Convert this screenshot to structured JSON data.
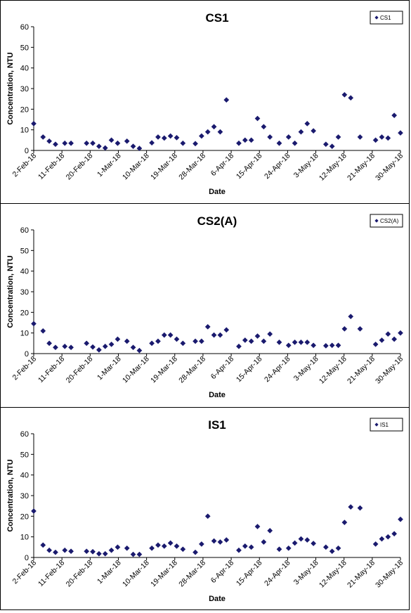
{
  "chart_data": [
    {
      "type": "scatter",
      "title": "CS1",
      "xlabel": "Date",
      "ylabel": "Concentration, NTU",
      "ylim": [
        0,
        60
      ],
      "yticks": [
        0,
        10,
        20,
        30,
        40,
        50,
        60
      ],
      "xlim": [
        "2018-02-02",
        "2018-05-31"
      ],
      "xtick_labels": [
        "2-Feb-18",
        "11-Feb-18",
        "20-Feb-18",
        "1-Mar-18",
        "10-Mar-18",
        "19-Mar-18",
        "28-Mar-18",
        "6-Apr-18",
        "15-Apr-18",
        "24-Apr-18",
        "3-May-18",
        "12-May-18",
        "21-May-18",
        "30-May-18"
      ],
      "legend": "top-right",
      "grid": false,
      "marker_color": "#1a1a6e",
      "series": [
        {
          "name": "CS1",
          "x": [
            "2018-02-02",
            "2018-02-05",
            "2018-02-07",
            "2018-02-09",
            "2018-02-12",
            "2018-02-14",
            "2018-02-19",
            "2018-02-21",
            "2018-02-23",
            "2018-02-25",
            "2018-02-27",
            "2018-03-01",
            "2018-03-04",
            "2018-03-06",
            "2018-03-08",
            "2018-03-12",
            "2018-03-14",
            "2018-03-16",
            "2018-03-18",
            "2018-03-20",
            "2018-03-22",
            "2018-03-26",
            "2018-03-28",
            "2018-03-30",
            "2018-04-01",
            "2018-04-03",
            "2018-04-05",
            "2018-04-09",
            "2018-04-11",
            "2018-04-13",
            "2018-04-15",
            "2018-04-17",
            "2018-04-19",
            "2018-04-22",
            "2018-04-25",
            "2018-04-27",
            "2018-04-29",
            "2018-05-01",
            "2018-05-03",
            "2018-05-07",
            "2018-05-09",
            "2018-05-11",
            "2018-05-13",
            "2018-05-15",
            "2018-05-18",
            "2018-05-23",
            "2018-05-25",
            "2018-05-27",
            "2018-05-29",
            "2018-05-31"
          ],
          "y": [
            13,
            6.5,
            4.5,
            3,
            3.5,
            3.5,
            3.5,
            3.5,
            2,
            1.2,
            5,
            3.5,
            4.5,
            2,
            1,
            3.7,
            6.5,
            6,
            7,
            6.2,
            3.5,
            3.3,
            7,
            9,
            11.5,
            9,
            24.5,
            3.5,
            5,
            5,
            15.5,
            11.5,
            6.5,
            3.5,
            6.5,
            3.5,
            9,
            13,
            9.5,
            3,
            2,
            6.5,
            27,
            25.5,
            6.5,
            5,
            6.5,
            6,
            17,
            8.5
          ]
        }
      ]
    },
    {
      "type": "scatter",
      "title": "CS2(A)",
      "xlabel": "Date",
      "ylabel": "Concentration, NTU",
      "ylim": [
        0,
        60
      ],
      "yticks": [
        0,
        10,
        20,
        30,
        40,
        50,
        60
      ],
      "xlim": [
        "2018-02-02",
        "2018-05-31"
      ],
      "xtick_labels": [
        "2-Feb-18",
        "11-Feb-18",
        "20-Feb-18",
        "1-Mar-18",
        "10-Mar-18",
        "19-Mar-18",
        "28-Mar-18",
        "6-Apr-18",
        "15-Apr-18",
        "24-Apr-18",
        "3-May-18",
        "12-May-18",
        "21-May-18",
        "30-May-18"
      ],
      "legend": "top-right",
      "grid": false,
      "marker_color": "#1a1a6e",
      "series": [
        {
          "name": "CS2(A)",
          "x": [
            "2018-02-02",
            "2018-02-05",
            "2018-02-07",
            "2018-02-09",
            "2018-02-12",
            "2018-02-14",
            "2018-02-19",
            "2018-02-21",
            "2018-02-23",
            "2018-02-25",
            "2018-02-27",
            "2018-03-01",
            "2018-03-04",
            "2018-03-06",
            "2018-03-08",
            "2018-03-12",
            "2018-03-14",
            "2018-03-16",
            "2018-03-18",
            "2018-03-20",
            "2018-03-22",
            "2018-03-26",
            "2018-03-28",
            "2018-03-30",
            "2018-04-01",
            "2018-04-03",
            "2018-04-05",
            "2018-04-09",
            "2018-04-11",
            "2018-04-13",
            "2018-04-15",
            "2018-04-17",
            "2018-04-19",
            "2018-04-22",
            "2018-04-25",
            "2018-04-27",
            "2018-04-29",
            "2018-05-01",
            "2018-05-03",
            "2018-05-07",
            "2018-05-09",
            "2018-05-11",
            "2018-05-13",
            "2018-05-15",
            "2018-05-18",
            "2018-05-23",
            "2018-05-25",
            "2018-05-27",
            "2018-05-29",
            "2018-05-31"
          ],
          "y": [
            14.5,
            11,
            5,
            3,
            3.5,
            3,
            5,
            3.2,
            1.8,
            3.5,
            4.5,
            7,
            6,
            3,
            1.5,
            5,
            6,
            9,
            9,
            7,
            5,
            6,
            6,
            13,
            9,
            9,
            11.5,
            3.5,
            6.5,
            6,
            8.5,
            6,
            9.5,
            5.5,
            4,
            5.5,
            5.5,
            5.5,
            4,
            3.8,
            4,
            4,
            12,
            18,
            12,
            4.5,
            6.5,
            9.5,
            7,
            10
          ]
        }
      ]
    },
    {
      "type": "scatter",
      "title": "IS1",
      "xlabel": "Date",
      "ylabel": "Concentration, NTU",
      "ylim": [
        0,
        60
      ],
      "yticks": [
        0,
        10,
        20,
        30,
        40,
        50,
        60
      ],
      "xlim": [
        "2018-02-02",
        "2018-05-31"
      ],
      "xtick_labels": [
        "2-Feb-18",
        "11-Feb-18",
        "20-Feb-18",
        "1-Mar-18",
        "10-Mar-18",
        "19-Mar-18",
        "28-Mar-18",
        "6-Apr-18",
        "15-Apr-18",
        "24-Apr-18",
        "3-May-18",
        "12-May-18",
        "21-May-18",
        "30-May-18"
      ],
      "legend": "top-right",
      "grid": false,
      "marker_color": "#1a1a6e",
      "series": [
        {
          "name": "IS1",
          "x": [
            "2018-02-02",
            "2018-02-05",
            "2018-02-07",
            "2018-02-09",
            "2018-02-12",
            "2018-02-14",
            "2018-02-19",
            "2018-02-21",
            "2018-02-23",
            "2018-02-25",
            "2018-02-27",
            "2018-03-01",
            "2018-03-04",
            "2018-03-06",
            "2018-03-08",
            "2018-03-12",
            "2018-03-14",
            "2018-03-16",
            "2018-03-18",
            "2018-03-20",
            "2018-03-22",
            "2018-03-26",
            "2018-03-28",
            "2018-03-30",
            "2018-04-01",
            "2018-04-03",
            "2018-04-05",
            "2018-04-09",
            "2018-04-11",
            "2018-04-13",
            "2018-04-15",
            "2018-04-17",
            "2018-04-19",
            "2018-04-22",
            "2018-04-25",
            "2018-04-27",
            "2018-04-29",
            "2018-05-01",
            "2018-05-03",
            "2018-05-07",
            "2018-05-09",
            "2018-05-11",
            "2018-05-13",
            "2018-05-15",
            "2018-05-18",
            "2018-05-23",
            "2018-05-25",
            "2018-05-27",
            "2018-05-29",
            "2018-05-31"
          ],
          "y": [
            22.5,
            6,
            3.5,
            2.5,
            3.5,
            3,
            3,
            2.8,
            1.8,
            1.8,
            3.5,
            5,
            4.5,
            1.5,
            1.5,
            4.5,
            6,
            5.5,
            7,
            5.5,
            4,
            2.5,
            6.5,
            20,
            8,
            7.5,
            8.5,
            3.5,
            5.5,
            5,
            15,
            7.5,
            13,
            4,
            4.5,
            7,
            9,
            8.5,
            6.8,
            5,
            3,
            4.5,
            17,
            24.5,
            24,
            6.5,
            9,
            10,
            11.5,
            18.5
          ]
        }
      ]
    }
  ]
}
